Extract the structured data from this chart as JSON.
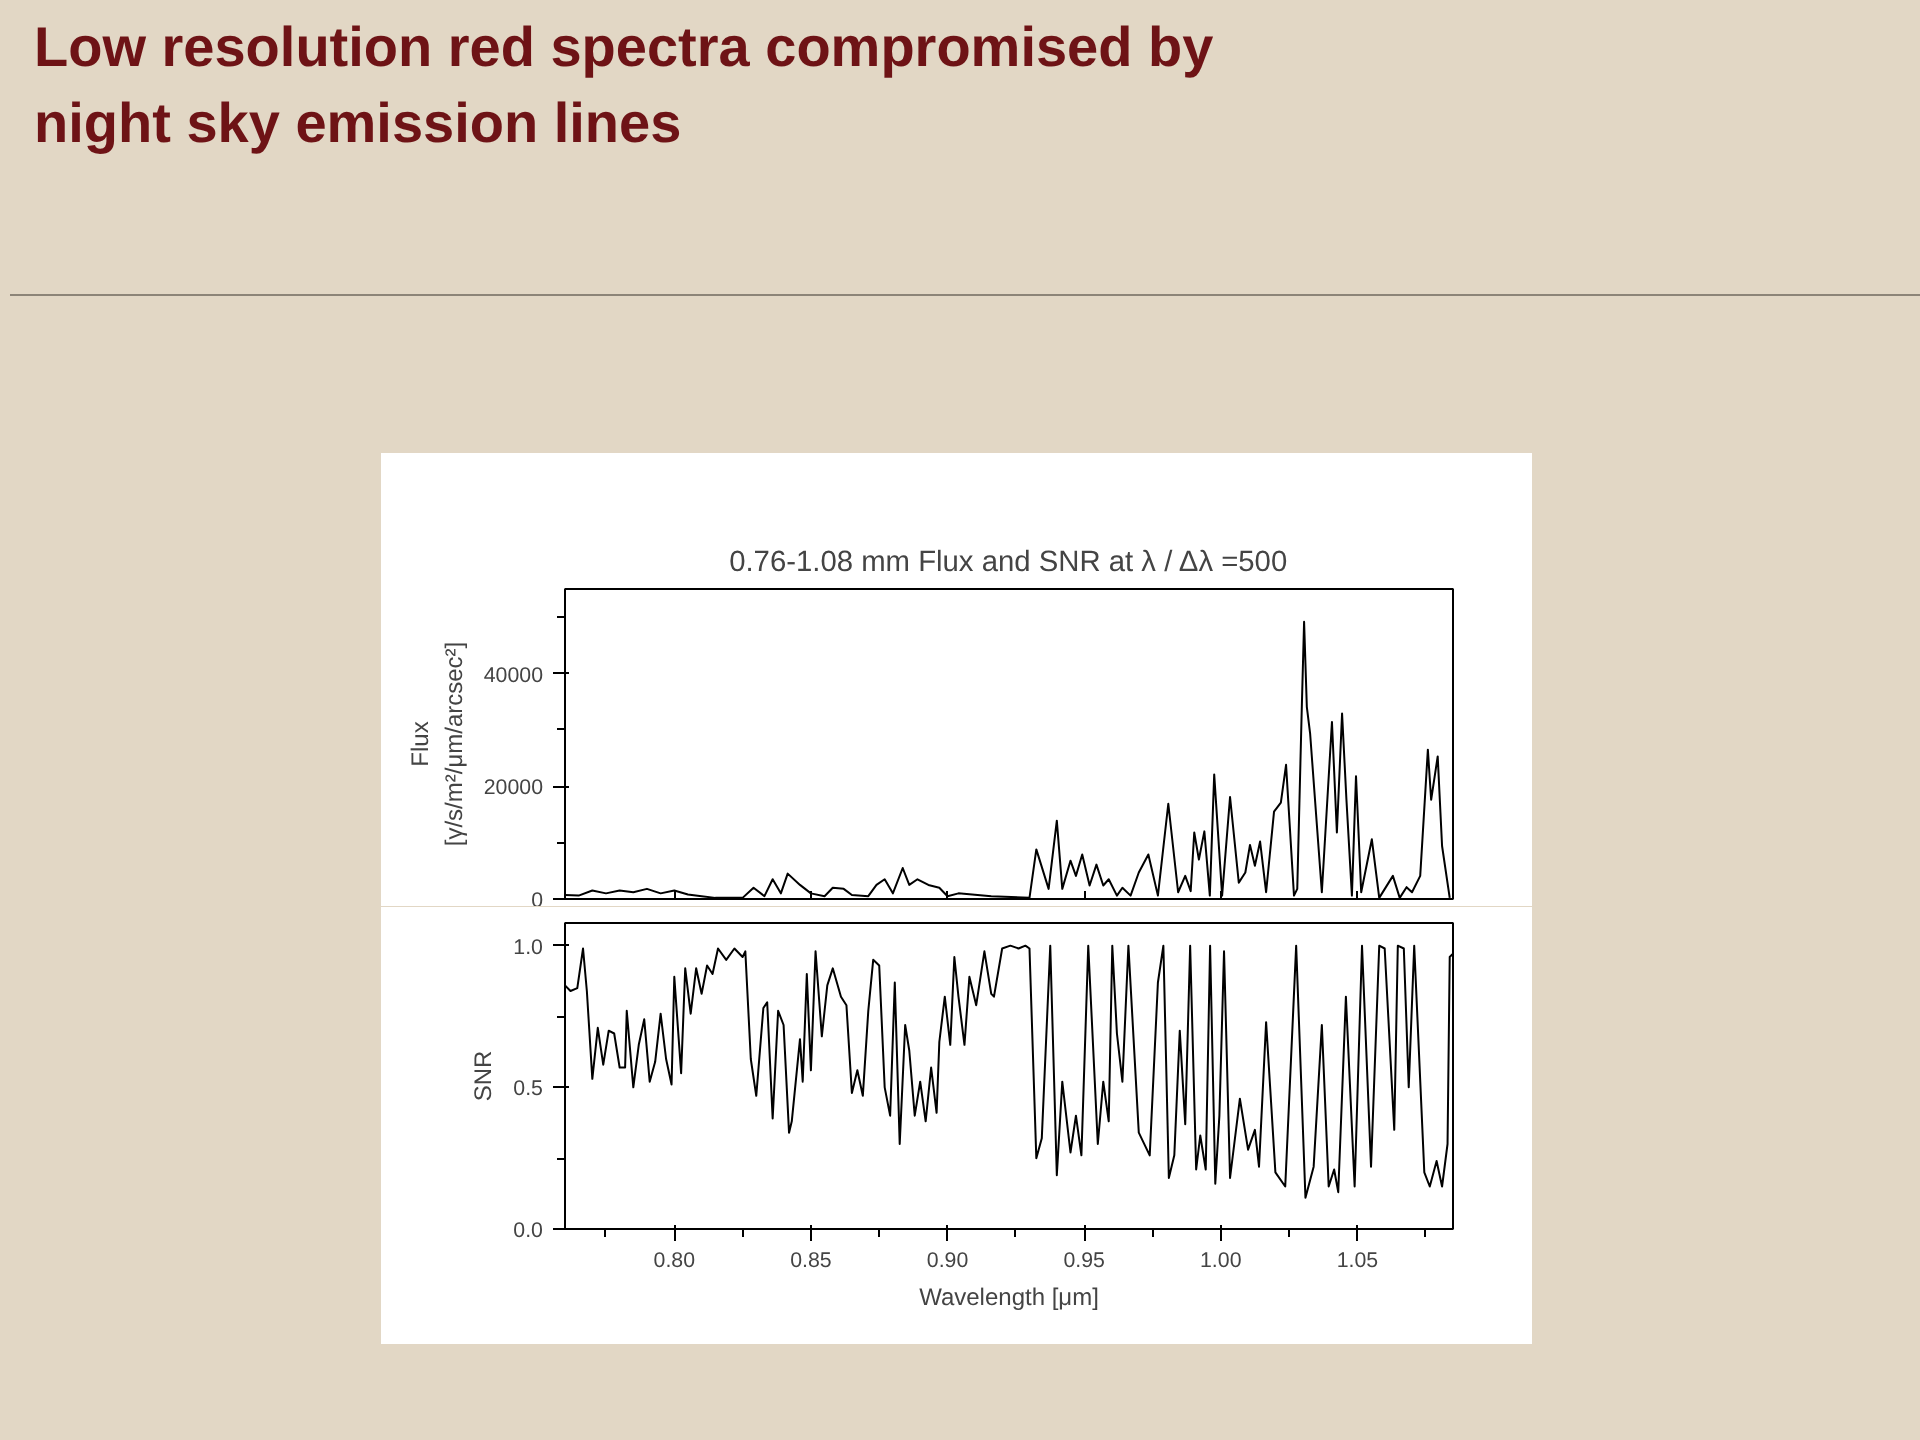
{
  "chart_data": [
    {
      "type": "line",
      "title": "Low resolution red spectra compromised by night sky emission lines",
      "subtitle": "0.76-1.08 mm Flux and SNR at λ / Δλ =500",
      "ylabel": "Flux\n[γ/s/m²/μm/arcsec²]",
      "xlim": [
        0.76,
        1.085
      ],
      "ylim": [
        0,
        55000
      ],
      "yticks": [
        0,
        20000,
        40000
      ],
      "tick_labels": "y",
      "grid": false,
      "series": [
        {
          "color": "#000000",
          "x": [
            0.76,
            0.765,
            0.77,
            0.775,
            0.78,
            0.785,
            0.79,
            0.795,
            0.8,
            0.805,
            0.81,
            0.815,
            0.825,
            0.829,
            0.833,
            0.836,
            0.839,
            0.8415,
            0.846,
            0.85,
            0.855,
            0.858,
            0.862,
            0.865,
            0.871,
            0.874,
            0.877,
            0.88,
            0.8836,
            0.886,
            0.889,
            0.893,
            0.897,
            0.9,
            0.904,
            0.916,
            0.93,
            0.9325,
            0.937,
            0.94,
            0.942,
            0.945,
            0.947,
            0.9493,
            0.952,
            0.9545,
            0.957,
            0.959,
            0.962,
            0.964,
            0.967,
            0.97,
            0.9735,
            0.977,
            0.9808,
            0.9844,
            0.987,
            0.989,
            0.9903,
            0.992,
            0.994,
            0.996,
            0.9976,
            1.0005,
            1.0034,
            1.0066,
            1.009,
            1.0107,
            1.0125,
            1.0144,
            1.0166,
            1.0195,
            1.022,
            1.0239,
            1.0268,
            1.028,
            1.0297,
            1.0305,
            1.0315,
            1.0327,
            1.037,
            1.0407,
            1.0425,
            1.0444,
            1.046,
            1.048,
            1.0495,
            1.0514,
            1.0553,
            1.058,
            1.063,
            1.0655,
            1.068,
            1.07,
            1.073,
            1.0758,
            1.077,
            1.0794,
            1.081,
            1.0838
          ],
          "values": [
            700,
            600,
            1500,
            1000,
            1500,
            1200,
            1800,
            1000,
            1500,
            800,
            500,
            200,
            200,
            2000,
            500,
            3500,
            1000,
            4500,
            2500,
            1000,
            500,
            2000,
            1800,
            700,
            500,
            2500,
            3500,
            1000,
            5500,
            2500,
            3500,
            2500,
            2000,
            500,
            1000,
            500,
            200,
            8800,
            1800,
            13900,
            1800,
            6800,
            4100,
            7900,
            2400,
            6100,
            2400,
            3500,
            600,
            2000,
            600,
            4700,
            7900,
            600,
            16900,
            1200,
            4100,
            1400,
            11800,
            7000,
            12000,
            600,
            22100,
            600,
            18100,
            2900,
            4700,
            9600,
            5900,
            10200,
            1200,
            15500,
            17100,
            23800,
            600,
            1800,
            34700,
            49200,
            34100,
            29400,
            1200,
            31400,
            11800,
            32900,
            17600,
            600,
            21800,
            1200,
            10600,
            200,
            4100,
            200,
            2100,
            1200,
            4100,
            26500,
            17600,
            25300,
            9400,
            200
          ]
        }
      ]
    },
    {
      "type": "line",
      "xlabel": "Wavelength [μm]",
      "ylabel": "SNR",
      "xlim": [
        0.76,
        1.085
      ],
      "ylim": [
        0,
        1.08
      ],
      "grid": false,
      "xticks": [
        {
          "value": 0.8,
          "label": "0.80"
        },
        {
          "value": 0.85,
          "label": "0.85"
        },
        {
          "value": 0.9,
          "label": "0.90"
        },
        {
          "value": 0.95,
          "label": "0.95"
        },
        {
          "value": 1.0,
          "label": "1.00"
        },
        {
          "value": 1.05,
          "label": "1.05"
        }
      ],
      "yticks": [
        {
          "value": 0,
          "label": "0.0"
        },
        {
          "value": 0.5,
          "label": "0.5"
        },
        {
          "value": 1.0,
          "label": "1.0"
        }
      ],
      "series": [
        {
          "color": "#000000",
          "x": [
            0.76,
            0.762,
            0.7645,
            0.7666,
            0.768,
            0.77,
            0.772,
            0.774,
            0.776,
            0.778,
            0.78,
            0.782,
            0.7826,
            0.785,
            0.787,
            0.789,
            0.791,
            0.793,
            0.795,
            0.797,
            0.799,
            0.8,
            0.8025,
            0.804,
            0.806,
            0.808,
            0.81,
            0.812,
            0.814,
            0.816,
            0.819,
            0.822,
            0.825,
            0.826,
            0.828,
            0.83,
            0.8326,
            0.834,
            0.836,
            0.838,
            0.84,
            0.842,
            0.843,
            0.846,
            0.847,
            0.8485,
            0.85,
            0.8517,
            0.854,
            0.856,
            0.858,
            0.861,
            0.863,
            0.865,
            0.867,
            0.869,
            0.871,
            0.8728,
            0.875,
            0.877,
            0.879,
            0.8807,
            0.8825,
            0.8845,
            0.886,
            0.888,
            0.89,
            0.892,
            0.894,
            0.896,
            0.897,
            0.899,
            0.901,
            0.9025,
            0.904,
            0.9062,
            0.908,
            0.9105,
            0.9135,
            0.916,
            0.917,
            0.92,
            0.923,
            0.926,
            0.9285,
            0.93,
            0.9325,
            0.9345,
            0.9376,
            0.94,
            0.942,
            0.945,
            0.947,
            0.949,
            0.9515,
            0.955,
            0.957,
            0.959,
            0.9603,
            0.962,
            0.964,
            0.9662,
            0.97,
            0.974,
            0.977,
            0.979,
            0.981,
            0.983,
            0.985,
            0.987,
            0.9888,
            0.991,
            0.9925,
            0.9945,
            0.9961,
            0.998,
            0.9995,
            1.0012,
            1.0034,
            1.007,
            1.01,
            1.0125,
            1.014,
            1.0166,
            1.02,
            1.0236,
            1.0276,
            1.031,
            1.034,
            1.037,
            1.0395,
            1.0415,
            1.043,
            1.0458,
            1.049,
            1.0517,
            1.055,
            1.058,
            1.06,
            1.0635,
            1.0648,
            1.067,
            1.0688,
            1.0708,
            1.0745,
            1.0765,
            1.079,
            1.081,
            1.083,
            1.0838,
            1.0848
          ],
          "values": [
            0.86,
            0.84,
            0.85,
            0.99,
            0.84,
            0.53,
            0.71,
            0.58,
            0.7,
            0.69,
            0.57,
            0.57,
            0.77,
            0.5,
            0.65,
            0.74,
            0.52,
            0.59,
            0.76,
            0.6,
            0.51,
            0.89,
            0.55,
            0.92,
            0.76,
            0.92,
            0.83,
            0.93,
            0.9,
            0.99,
            0.95,
            0.99,
            0.96,
            0.98,
            0.6,
            0.47,
            0.78,
            0.8,
            0.39,
            0.77,
            0.72,
            0.34,
            0.38,
            0.67,
            0.52,
            0.9,
            0.56,
            0.98,
            0.68,
            0.86,
            0.92,
            0.82,
            0.79,
            0.48,
            0.56,
            0.47,
            0.77,
            0.95,
            0.93,
            0.5,
            0.4,
            0.87,
            0.3,
            0.72,
            0.63,
            0.4,
            0.52,
            0.38,
            0.57,
            0.41,
            0.66,
            0.82,
            0.65,
            0.96,
            0.82,
            0.65,
            0.89,
            0.79,
            0.98,
            0.83,
            0.82,
            0.99,
            1.0,
            0.99,
            1.0,
            0.99,
            0.25,
            0.32,
            1.0,
            0.19,
            0.52,
            0.27,
            0.4,
            0.26,
            1.0,
            0.3,
            0.52,
            0.38,
            1.0,
            0.69,
            0.52,
            1.0,
            0.34,
            0.26,
            0.87,
            1.0,
            0.18,
            0.26,
            0.7,
            0.37,
            1.0,
            0.21,
            0.33,
            0.21,
            1.0,
            0.16,
            0.4,
            0.98,
            0.18,
            0.46,
            0.28,
            0.35,
            0.22,
            0.73,
            0.2,
            0.15,
            1.0,
            0.11,
            0.22,
            0.72,
            0.15,
            0.21,
            0.13,
            0.82,
            0.15,
            1.0,
            0.22,
            1.0,
            0.99,
            0.35,
            1.0,
            0.99,
            0.5,
            1.0,
            0.2,
            0.15,
            0.24,
            0.15,
            0.3,
            0.96,
            0.97
          ]
        }
      ]
    }
  ]
}
